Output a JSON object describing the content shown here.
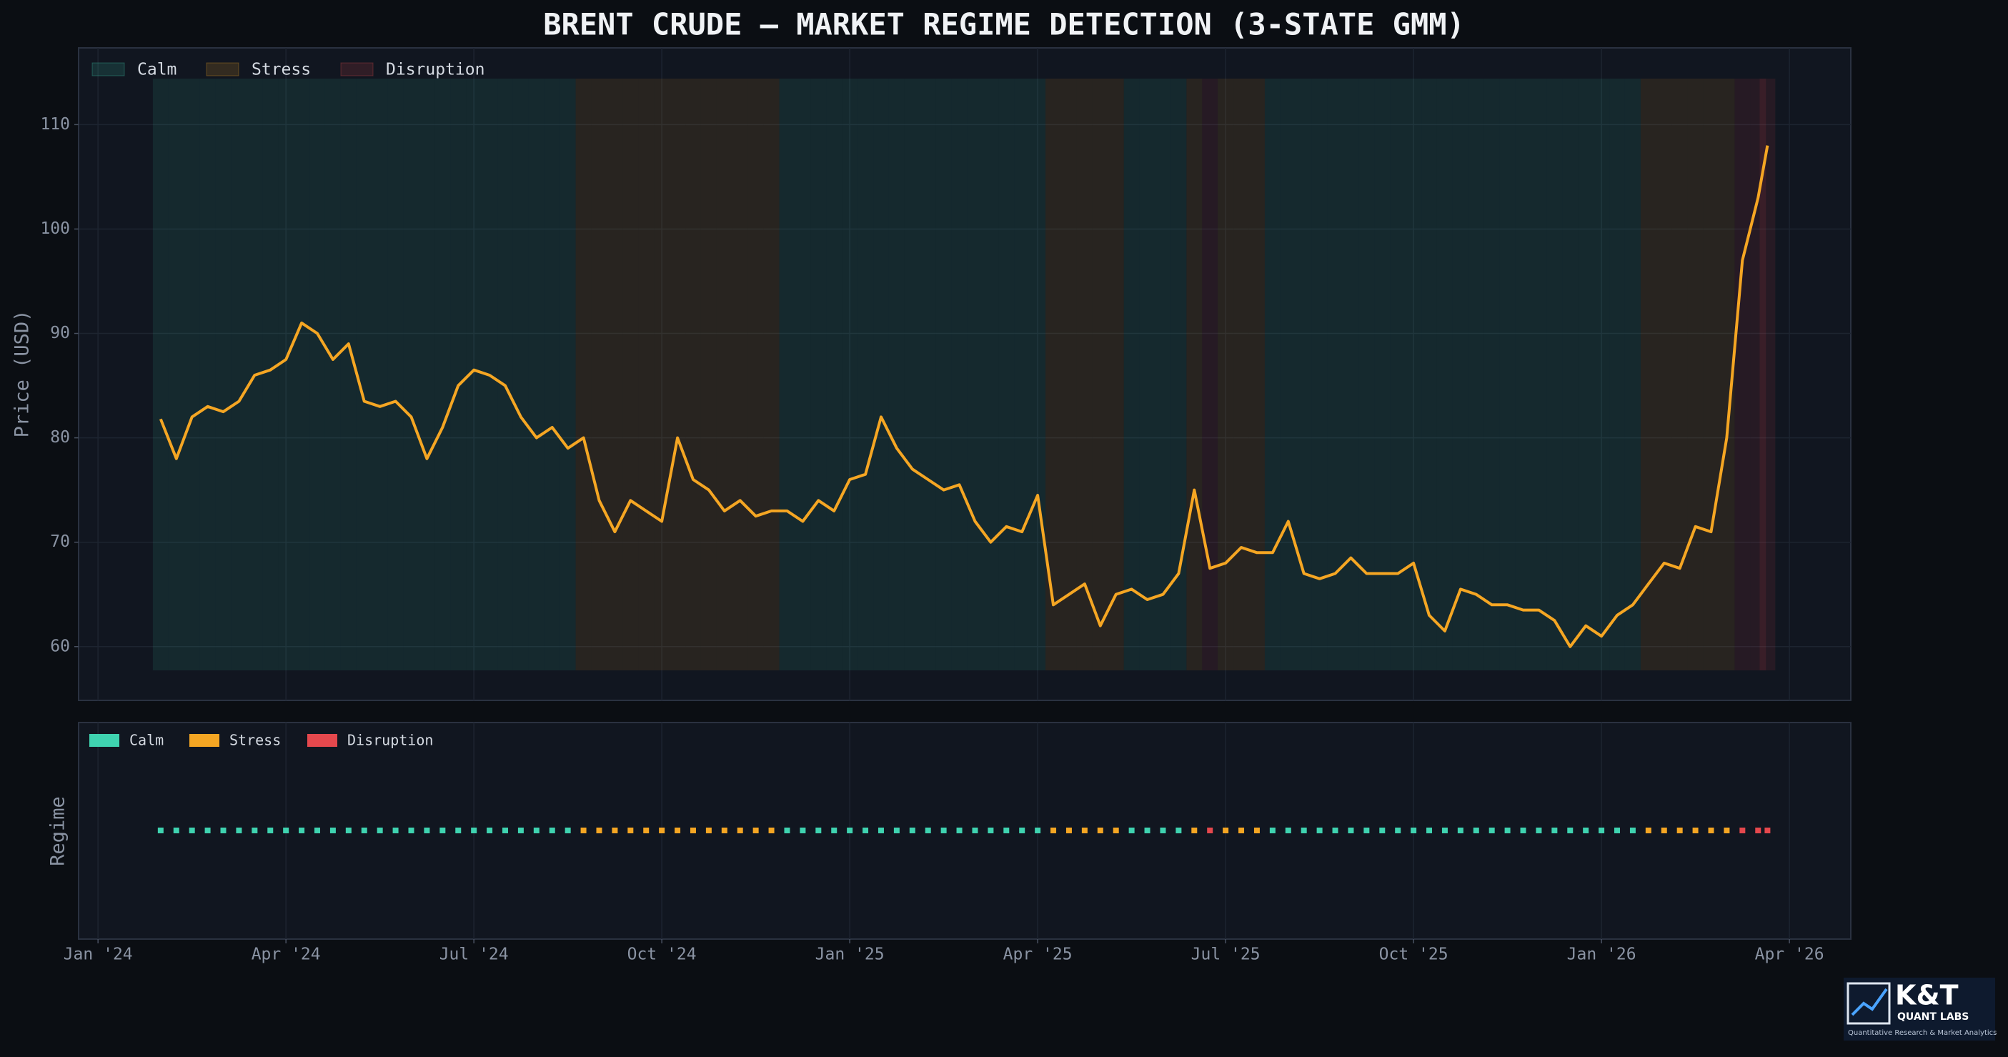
{
  "chart_data": {
    "type": "line",
    "title": "BRENT CRUDE — MARKET REGIME DETECTION (3-STATE GMM)",
    "y_label": "Price (USD)",
    "regime_label": "Regime",
    "color": "#f5a623",
    "x": [
      1,
      1.25,
      1.5,
      1.75,
      2,
      2.25,
      2.5,
      2.75,
      3,
      3.25,
      3.5,
      3.75,
      4,
      4.25,
      4.5,
      4.75,
      5,
      5.25,
      5.5,
      5.75,
      6,
      6.25,
      6.5,
      6.75,
      7,
      7.25,
      7.5,
      7.75,
      8,
      8.25,
      8.5,
      8.75,
      9,
      9.25,
      9.5,
      9.75,
      10,
      10.25,
      10.5,
      10.75,
      11,
      11.25,
      11.5,
      11.75,
      12,
      12.25,
      12.5,
      12.75,
      13,
      13.25,
      13.5,
      13.75,
      14,
      14.25,
      14.5,
      14.75,
      15,
      15.25,
      15.5,
      15.75,
      16,
      16.25,
      16.5,
      16.75,
      17,
      17.25,
      17.5,
      17.75,
      18,
      18.25,
      18.5,
      18.75,
      19,
      19.25,
      19.5,
      19.75,
      20,
      20.25,
      20.5,
      20.75,
      21,
      21.25,
      21.5,
      21.75,
      22,
      22.25,
      22.5,
      22.75,
      23,
      23.25,
      23.5,
      23.75,
      24,
      24.25,
      24.5,
      24.75,
      25,
      25.25,
      25.5,
      25.75,
      26,
      26.25,
      26.5,
      26.65
    ],
    "values": [
      81.8,
      78,
      82,
      83,
      82.5,
      83.5,
      86,
      86.5,
      87.5,
      91,
      90,
      87.5,
      89,
      83.5,
      83,
      83.5,
      82,
      78,
      81,
      85,
      86.5,
      86,
      85,
      82,
      80,
      81,
      79,
      80,
      74,
      71,
      74,
      73,
      72,
      80,
      76,
      75,
      73,
      74,
      72.5,
      73,
      73,
      72,
      74,
      73,
      76,
      76.5,
      82,
      79,
      77,
      76,
      75,
      75.5,
      72,
      70,
      71.5,
      71,
      74.5,
      64,
      65,
      66,
      62,
      65,
      65.5,
      64.5,
      65,
      67,
      75,
      67.5,
      68,
      69.5,
      69,
      69,
      72,
      67,
      66.5,
      67,
      68.5,
      67,
      67,
      67,
      68,
      63,
      61.5,
      65.5,
      65,
      64,
      64,
      63.5,
      63.5,
      62.5,
      60,
      62,
      61,
      63,
      64,
      66,
      68,
      67.5,
      71.5,
      71,
      80,
      97,
      103,
      108
    ],
    "regime": [
      0,
      0,
      0,
      0,
      0,
      0,
      0,
      0,
      0,
      0,
      0,
      0,
      0,
      0,
      0,
      0,
      0,
      0,
      0,
      0,
      0,
      0,
      0,
      0,
      0,
      0,
      0,
      1,
      1,
      1,
      1,
      1,
      1,
      1,
      1,
      1,
      1,
      1,
      1,
      1,
      0,
      0,
      0,
      0,
      0,
      0,
      0,
      0,
      0,
      0,
      0,
      0,
      0,
      0,
      0,
      0,
      0,
      1,
      1,
      1,
      1,
      1,
      0,
      0,
      0,
      0,
      1,
      2,
      1,
      1,
      1,
      0,
      0,
      0,
      0,
      0,
      0,
      0,
      0,
      0,
      0,
      0,
      0,
      0,
      0,
      0,
      0,
      0,
      0,
      0,
      0,
      0,
      0,
      0,
      0,
      1,
      1,
      1,
      1,
      1,
      1,
      2,
      2,
      2
    ],
    "regimes": {
      "names": [
        "Calm",
        "Stress",
        "Disruption"
      ],
      "colors": [
        "#3fd3b0",
        "#f5a623",
        "#e5484d"
      ]
    },
    "xlim": [
      -0.31,
      27.98
    ],
    "xticks": [
      {
        "value": 0,
        "label": "Jan '24"
      },
      {
        "value": 3,
        "label": "Apr '24"
      },
      {
        "value": 6,
        "label": "Jul '24"
      },
      {
        "value": 9,
        "label": "Oct '24"
      },
      {
        "value": 12,
        "label": "Jan '25"
      },
      {
        "value": 15,
        "label": "Apr '25"
      },
      {
        "value": 18,
        "label": "Jul '25"
      },
      {
        "value": 21,
        "label": "Oct '25"
      },
      {
        "value": 24,
        "label": "Jan '26"
      },
      {
        "value": 27,
        "label": "Apr '26"
      }
    ],
    "ylim": [
      54.85,
      117.35
    ],
    "yticks": [
      60,
      70,
      80,
      90,
      100,
      110
    ],
    "grid": true
  },
  "logo": {
    "title": "K&T",
    "subtitle": "QUANT LABS",
    "tagline": "Quantitative Research & Market Analytics"
  }
}
